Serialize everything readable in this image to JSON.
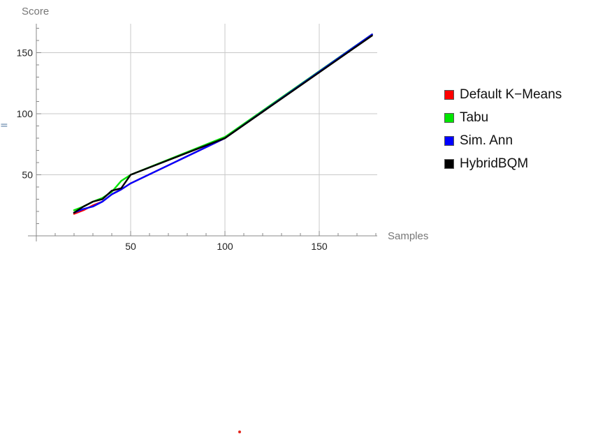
{
  "chart_data": {
    "type": "line",
    "xlabel": "Samples",
    "ylabel": "Score",
    "xlim": [
      0,
      180
    ],
    "ylim": [
      0,
      173
    ],
    "xticks": [
      50,
      100,
      150
    ],
    "yticks": [
      50,
      100,
      150
    ],
    "grid": true,
    "legend_position": "right",
    "series": [
      {
        "name": "Default K−Means",
        "color": "#ff0000",
        "x": [
          20,
          25,
          30,
          35,
          40,
          45,
          50,
          100,
          178
        ],
        "y": [
          18,
          21,
          25,
          28,
          34,
          38,
          43,
          80,
          165
        ]
      },
      {
        "name": "Tabu",
        "color": "#00e600",
        "x": [
          20,
          25,
          30,
          35,
          40,
          45,
          50,
          100,
          178
        ],
        "y": [
          21,
          24,
          28,
          31,
          36,
          45,
          50,
          81,
          165
        ]
      },
      {
        "name": "Sim. Ann",
        "color": "#0000ff",
        "x": [
          20,
          25,
          30,
          35,
          40,
          45,
          50,
          100,
          178
        ],
        "y": [
          19,
          22,
          24,
          28,
          34,
          38,
          43,
          80,
          165
        ]
      },
      {
        "name": "HybridBQM",
        "color": "#000000",
        "x": [
          20,
          25,
          30,
          35,
          40,
          45,
          50,
          100,
          178
        ],
        "y": [
          19,
          24,
          28,
          30,
          37,
          39,
          50,
          80,
          164
        ]
      }
    ]
  },
  "stray_mark": "="
}
